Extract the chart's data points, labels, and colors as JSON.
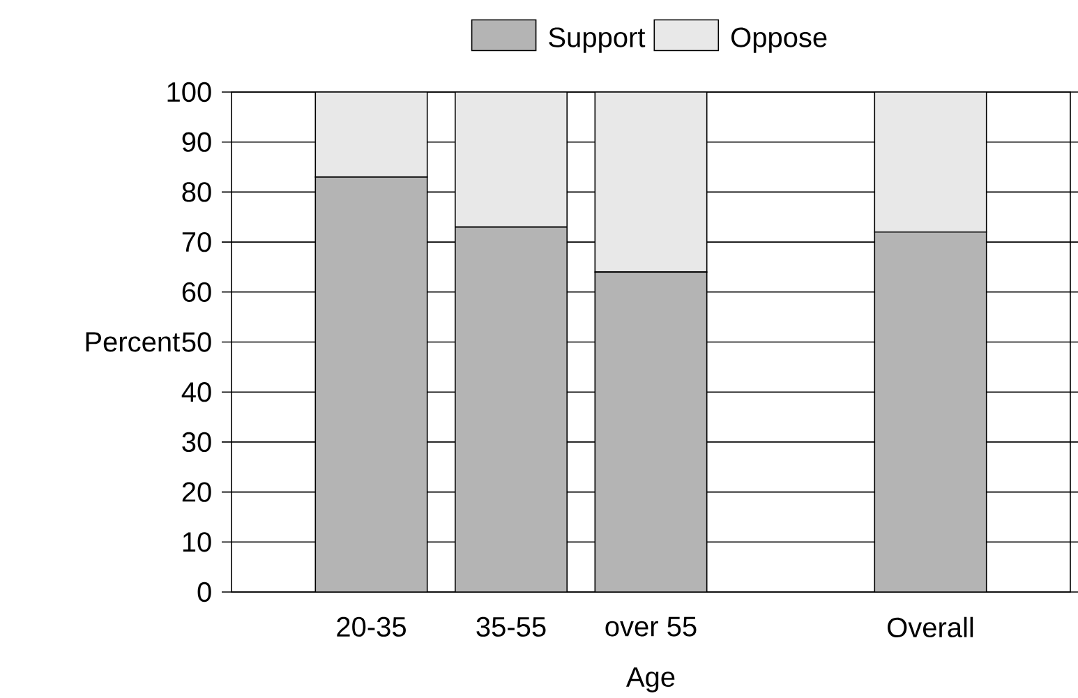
{
  "chart_data": {
    "type": "bar",
    "stacked": true,
    "xlabel": "Age",
    "ylabel": "Percent",
    "categories": [
      "20-35",
      "35-55",
      "over 55",
      null,
      "Overall"
    ],
    "series": [
      {
        "name": "Support",
        "color": "#b4b4b4",
        "values": [
          83,
          73,
          64,
          null,
          72
        ]
      },
      {
        "name": "Oppose",
        "color": "#e8e8e8",
        "values": [
          17,
          27,
          36,
          null,
          28
        ]
      }
    ],
    "ylim": [
      0,
      100
    ],
    "yticks": [
      0,
      10,
      20,
      30,
      40,
      50,
      60,
      70,
      80,
      90,
      100
    ],
    "grid": "y",
    "legend": "top"
  }
}
